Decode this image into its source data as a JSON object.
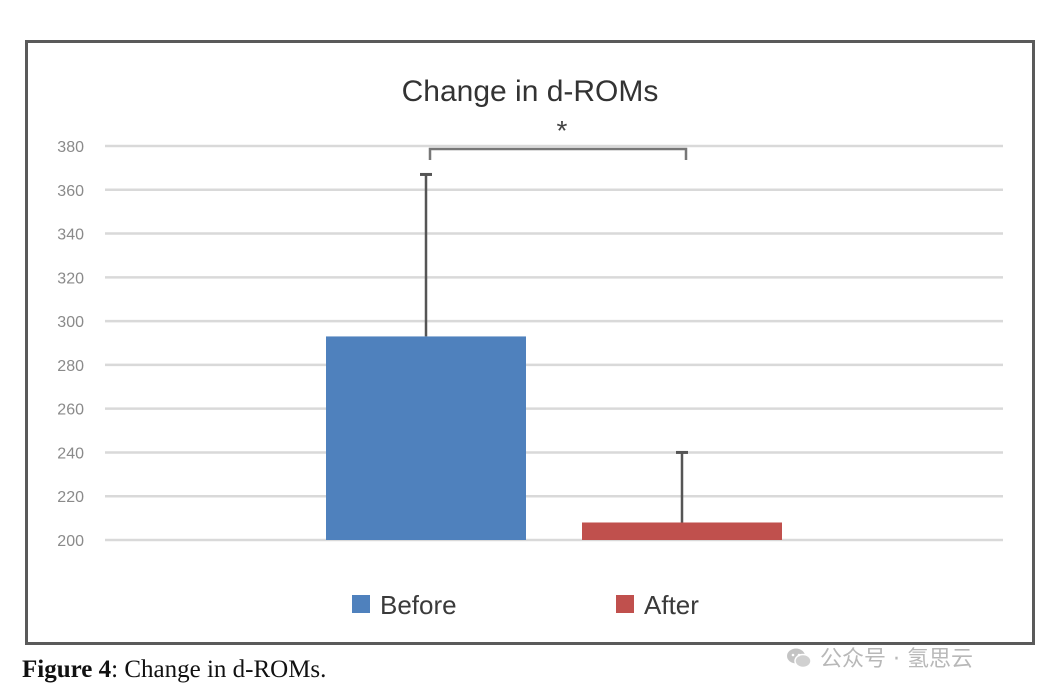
{
  "chart_data": {
    "type": "bar",
    "title": "Change in d-ROMs",
    "categories": [
      "Before",
      "After"
    ],
    "values": [
      293,
      208
    ],
    "error_upper": [
      367,
      240
    ],
    "colors": [
      "#4f81bd",
      "#c0504d"
    ],
    "ylim": [
      200,
      380
    ],
    "yticks": [
      "380",
      "360",
      "340",
      "320",
      "300",
      "280",
      "260",
      "240",
      "220",
      "200"
    ],
    "grid": true,
    "legend_position": "bottom",
    "annotation": "*",
    "xlabel": "",
    "ylabel": ""
  },
  "caption": {
    "label": "Figure 4",
    "text": ": Change in d-ROMs."
  },
  "watermark": {
    "text": "公众号 · 氢思云"
  }
}
